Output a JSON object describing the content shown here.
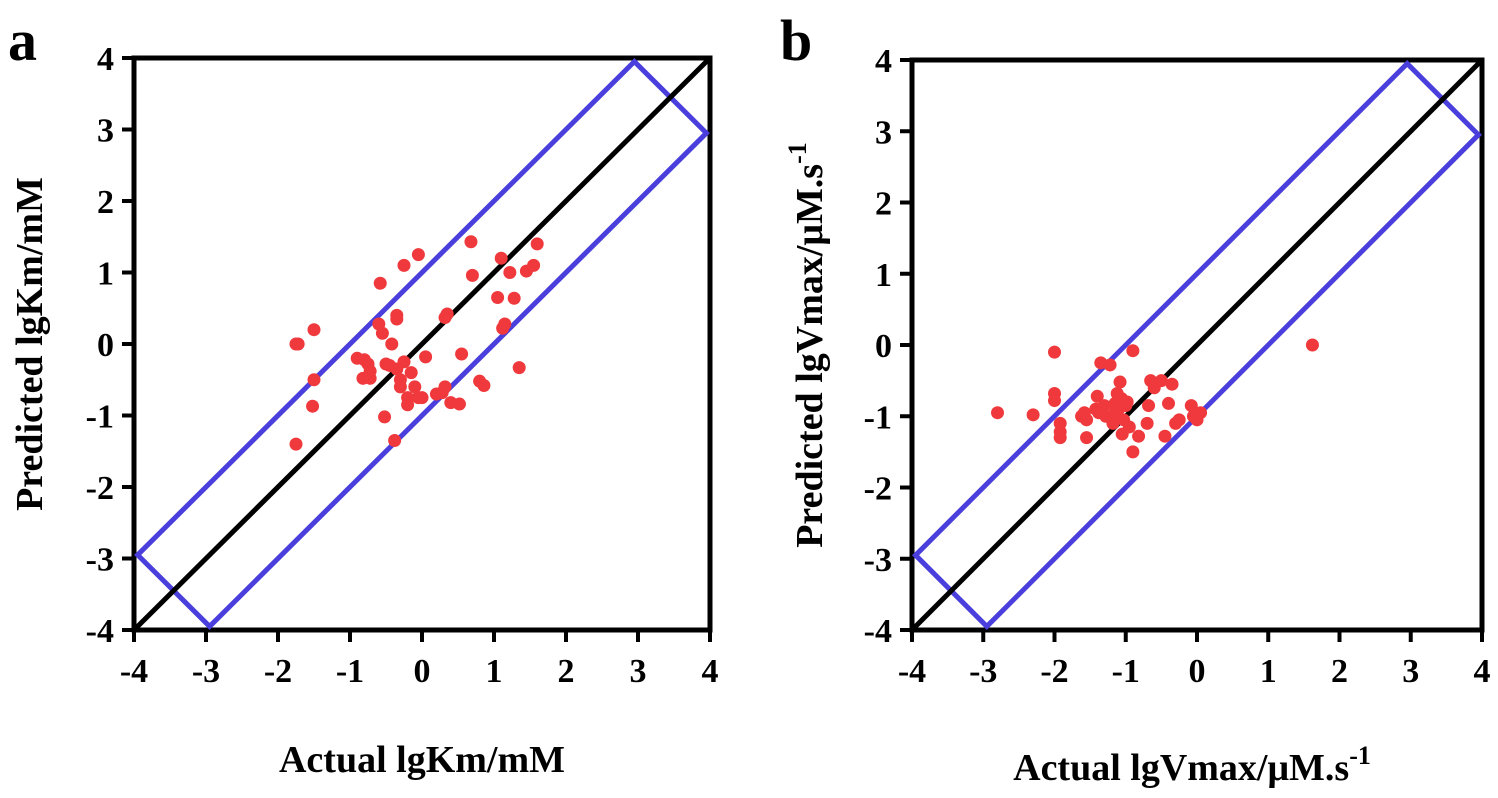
{
  "panel_a_letter": "a",
  "panel_b_letter": "b",
  "colors": {
    "points": "#f0393c",
    "band": "#4a3fdc",
    "diagonal": "#000000",
    "axes": "#000000"
  },
  "chart_data": [
    {
      "type": "scatter",
      "panel": "a",
      "xlabel": "Actual lgKm/mM",
      "ylabel": "Predicted lgKm/mM",
      "xlim": [
        -4,
        4
      ],
      "ylim": [
        -4,
        4
      ],
      "xticks": [
        "-4",
        "-3",
        "-2",
        "-1",
        "0",
        "1",
        "2",
        "3",
        "4"
      ],
      "yticks": [
        "-4",
        "-3",
        "-2",
        "-1",
        "0",
        "1",
        "2",
        "3",
        "4"
      ],
      "reference_line": [
        [
          -4,
          -4
        ],
        [
          4,
          4
        ]
      ],
      "band_polygon": [
        [
          -3.95,
          -2.95
        ],
        [
          2.95,
          3.95
        ],
        [
          3.95,
          2.95
        ],
        [
          -2.95,
          -3.95
        ]
      ],
      "points": [
        [
          -1.75,
          0.0
        ],
        [
          -1.72,
          0.0
        ],
        [
          -1.5,
          0.2
        ],
        [
          -1.5,
          -0.5
        ],
        [
          -1.52,
          -0.87
        ],
        [
          -1.75,
          -1.4
        ],
        [
          -0.58,
          0.85
        ],
        [
          -0.6,
          0.28
        ],
        [
          -0.55,
          0.15
        ],
        [
          -0.35,
          0.4
        ],
        [
          -0.35,
          0.35
        ],
        [
          -0.42,
          0.0
        ],
        [
          -0.9,
          -0.2
        ],
        [
          -0.8,
          -0.22
        ],
        [
          -0.75,
          -0.28
        ],
        [
          -0.72,
          -0.38
        ],
        [
          -0.82,
          -0.48
        ],
        [
          -0.72,
          -0.48
        ],
        [
          -0.5,
          -0.28
        ],
        [
          -0.45,
          -0.3
        ],
        [
          -0.35,
          -0.35
        ],
        [
          -0.25,
          -0.25
        ],
        [
          -0.3,
          -0.5
        ],
        [
          -0.3,
          -0.6
        ],
        [
          -0.15,
          -0.4
        ],
        [
          -0.2,
          -0.75
        ],
        [
          -0.2,
          -0.85
        ],
        [
          -0.1,
          -0.6
        ],
        [
          -0.05,
          -0.75
        ],
        [
          0.0,
          -0.75
        ],
        [
          0.05,
          -0.18
        ],
        [
          -0.52,
          -1.02
        ],
        [
          -0.38,
          -1.35
        ],
        [
          -0.25,
          1.1
        ],
        [
          -0.05,
          1.25
        ],
        [
          0.2,
          -0.7
        ],
        [
          0.28,
          -0.68
        ],
        [
          0.32,
          -0.6
        ],
        [
          0.4,
          -0.82
        ],
        [
          0.52,
          -0.84
        ],
        [
          0.35,
          0.42
        ],
        [
          0.32,
          0.37
        ],
        [
          0.55,
          -0.14
        ],
        [
          0.68,
          1.43
        ],
        [
          0.7,
          0.96
        ],
        [
          0.8,
          -0.52
        ],
        [
          0.86,
          -0.58
        ],
        [
          1.05,
          0.65
        ],
        [
          1.1,
          1.2
        ],
        [
          1.12,
          0.22
        ],
        [
          1.15,
          0.28
        ],
        [
          1.22,
          1.0
        ],
        [
          1.28,
          0.64
        ],
        [
          1.35,
          -0.33
        ],
        [
          1.45,
          1.02
        ],
        [
          1.55,
          1.1
        ],
        [
          1.6,
          1.4
        ]
      ]
    },
    {
      "type": "scatter",
      "panel": "b",
      "xlabel": "Actual lgVmax/μM.s",
      "xlabel_sup": "-1",
      "ylabel": "Predicted lgVmax/μM.s",
      "ylabel_sup": "-1",
      "xlim": [
        -4,
        4
      ],
      "ylim": [
        -4,
        4
      ],
      "xticks": [
        "-4",
        "-3",
        "-2",
        "-1",
        "0",
        "1",
        "2",
        "3",
        "4"
      ],
      "yticks": [
        "-4",
        "-3",
        "-2",
        "-1",
        "0",
        "1",
        "2",
        "3",
        "4"
      ],
      "reference_line": [
        [
          -4,
          -4
        ],
        [
          4,
          4
        ]
      ],
      "band_polygon": [
        [
          -3.95,
          -2.95
        ],
        [
          2.95,
          3.95
        ],
        [
          3.95,
          2.95
        ],
        [
          -2.95,
          -3.95
        ]
      ],
      "points": [
        [
          -2.8,
          -0.95
        ],
        [
          -2.3,
          -0.98
        ],
        [
          -2.0,
          -0.1
        ],
        [
          -2.0,
          -0.68
        ],
        [
          -2.0,
          -0.78
        ],
        [
          -1.92,
          -1.1
        ],
        [
          -1.92,
          -1.22
        ],
        [
          -1.92,
          -1.3
        ],
        [
          -1.62,
          -1.0
        ],
        [
          -1.58,
          -0.95
        ],
        [
          -1.55,
          -1.05
        ],
        [
          -1.55,
          -1.3
        ],
        [
          -1.42,
          -0.9
        ],
        [
          -1.4,
          -0.72
        ],
        [
          -1.38,
          -0.95
        ],
        [
          -1.35,
          -0.25
        ],
        [
          -1.3,
          -0.85
        ],
        [
          -1.28,
          -1.0
        ],
        [
          -1.22,
          -0.28
        ],
        [
          -1.18,
          -1.1
        ],
        [
          -1.15,
          -0.95
        ],
        [
          -1.15,
          -0.82
        ],
        [
          -1.12,
          -0.68
        ],
        [
          -1.1,
          -0.9
        ],
        [
          -1.08,
          -0.52
        ],
        [
          -1.06,
          -0.75
        ],
        [
          -1.03,
          -1.05
        ],
        [
          -1.0,
          -0.85
        ],
        [
          -0.98,
          -0.8
        ],
        [
          -0.95,
          -1.15
        ],
        [
          -1.05,
          -1.25
        ],
        [
          -0.9,
          -0.08
        ],
        [
          -0.9,
          -1.5
        ],
        [
          -0.82,
          -1.28
        ],
        [
          -0.7,
          -1.1
        ],
        [
          -0.68,
          -0.85
        ],
        [
          -0.65,
          -0.5
        ],
        [
          -0.6,
          -0.6
        ],
        [
          -0.5,
          -0.5
        ],
        [
          -0.45,
          -1.28
        ],
        [
          -0.4,
          -0.82
        ],
        [
          -0.35,
          -0.55
        ],
        [
          -0.3,
          -1.1
        ],
        [
          -0.25,
          -1.05
        ],
        [
          -0.08,
          -0.85
        ],
        [
          -0.05,
          -1.0
        ],
        [
          0.0,
          -1.05
        ],
        [
          0.05,
          -0.95
        ],
        [
          1.62,
          0.0
        ]
      ]
    }
  ]
}
